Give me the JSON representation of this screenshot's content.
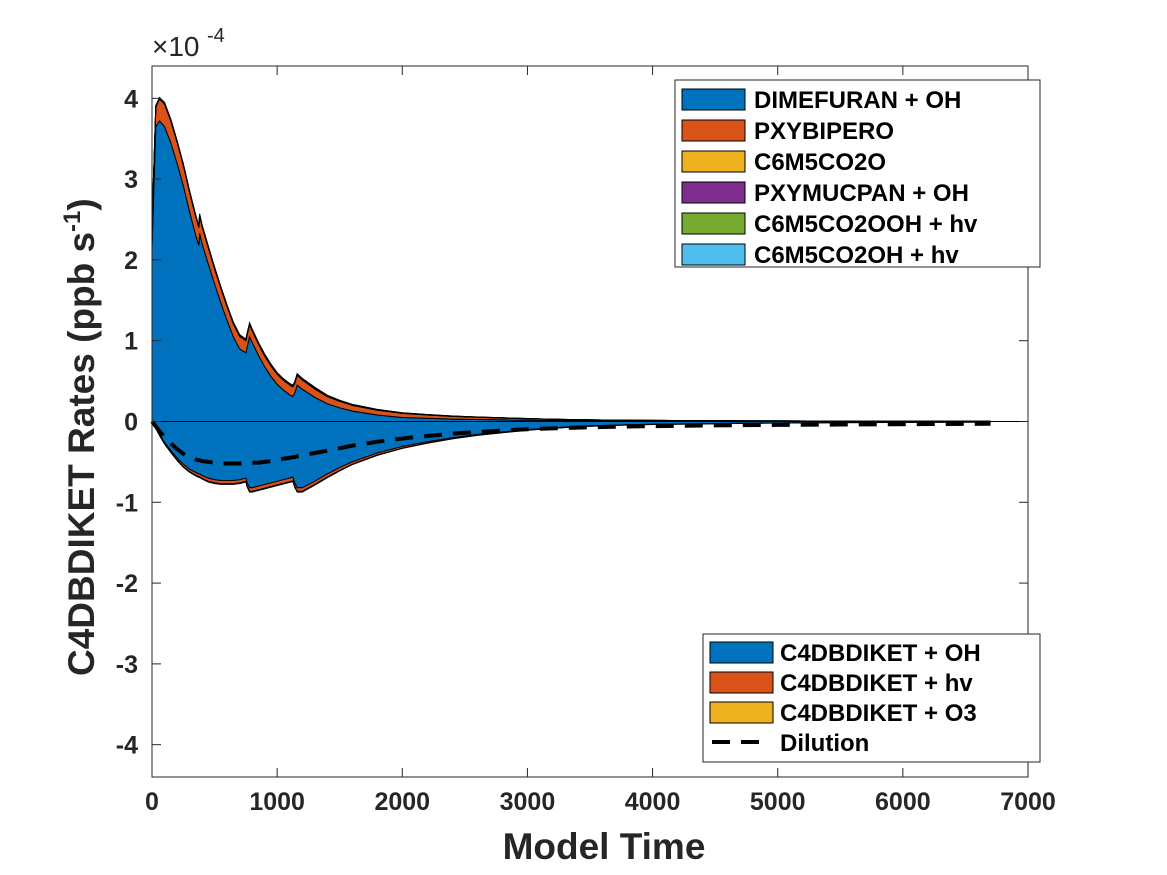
{
  "chart_data": {
    "type": "area",
    "xlabel": "Model Time",
    "ylabel": "C4DBDIKET Rates (ppb s",
    "ylabel_sup": "-1",
    "ylabel_close": ")",
    "axis_multiplier": {
      "base": "×10",
      "exponent": "-4"
    },
    "xlim": [
      0,
      7000
    ],
    "ylim": [
      -4.4,
      4.4
    ],
    "xticks": [
      0,
      1000,
      2000,
      3000,
      4000,
      5000,
      6000,
      7000
    ],
    "yticks": [
      4,
      3,
      2,
      1,
      0,
      -1,
      -2,
      -3,
      -4
    ],
    "grid": false,
    "legend_positive_placement": "top-right",
    "legend_negative_placement": "bottom-right",
    "x": [
      0,
      30,
      60,
      100,
      150,
      200,
      250,
      300,
      350,
      375,
      380,
      400,
      450,
      500,
      550,
      600,
      650,
      700,
      750,
      760,
      780,
      800,
      850,
      900,
      950,
      1000,
      1050,
      1100,
      1125,
      1140,
      1160,
      1200,
      1300,
      1400,
      1500,
      1600,
      1800,
      2000,
      2200,
      2400,
      2600,
      2800,
      3000,
      3200,
      3400,
      3600,
      3800,
      4000,
      4500,
      5000,
      5500,
      6000,
      6500,
      6700
    ],
    "positive_series": [
      {
        "name": "DIMEFURAN + OH",
        "color": "#0072BD",
        "values": [
          2.15,
          3.65,
          3.72,
          3.65,
          3.45,
          3.2,
          2.92,
          2.6,
          2.3,
          2.18,
          2.33,
          2.2,
          1.95,
          1.7,
          1.47,
          1.25,
          1.05,
          0.9,
          0.85,
          0.92,
          1.05,
          0.98,
          0.82,
          0.68,
          0.56,
          0.46,
          0.39,
          0.33,
          0.31,
          0.35,
          0.45,
          0.4,
          0.3,
          0.22,
          0.17,
          0.13,
          0.08,
          0.05,
          0.04,
          0.03,
          0.025,
          0.02,
          0.015,
          0.012,
          0.01,
          0.008,
          0.007,
          0.006,
          0.004,
          0.003,
          0.002,
          0.002,
          0.001,
          0.001
        ]
      },
      {
        "name": "PXYBIPERO",
        "color": "#D95319",
        "values": [
          0.25,
          0.24,
          0.27,
          0.28,
          0.27,
          0.26,
          0.25,
          0.24,
          0.23,
          0.22,
          0.22,
          0.21,
          0.2,
          0.19,
          0.18,
          0.17,
          0.16,
          0.155,
          0.15,
          0.15,
          0.15,
          0.145,
          0.14,
          0.135,
          0.13,
          0.125,
          0.12,
          0.12,
          0.12,
          0.12,
          0.12,
          0.115,
          0.105,
          0.09,
          0.08,
          0.07,
          0.06,
          0.05,
          0.04,
          0.033,
          0.027,
          0.022,
          0.018,
          0.015,
          0.012,
          0.01,
          0.008,
          0.007,
          0.005,
          0.004,
          0.003,
          0.002,
          0.002,
          0.001
        ]
      },
      {
        "name": "C6M5CO2O",
        "color": "#EDB120",
        "values": [
          0.01,
          0.01,
          0.01,
          0.01,
          0.01,
          0.01,
          0.01,
          0.01,
          0.01,
          0.01,
          0.01,
          0.01,
          0.01,
          0.01,
          0.01,
          0.01,
          0.01,
          0.01,
          0.01,
          0.01,
          0.01,
          0.01,
          0.01,
          0.01,
          0.01,
          0.01,
          0.01,
          0.01,
          0.01,
          0.01,
          0.01,
          0.01,
          0.01,
          0.008,
          0.007,
          0.006,
          0.005,
          0.004,
          0.003,
          0.003,
          0.002,
          0.002,
          0.002,
          0.001,
          0.001,
          0.001,
          0.001,
          0.001,
          0.001,
          0.0,
          0.0,
          0.0,
          0.0,
          0.0
        ]
      },
      {
        "name": "PXYMUCPAN + OH",
        "color": "#7E2F8E",
        "values": [
          0.0,
          0.005,
          0.005,
          0.005,
          0.005,
          0.005,
          0.005,
          0.005,
          0.005,
          0.005,
          0.005,
          0.005,
          0.005,
          0.005,
          0.005,
          0.005,
          0.005,
          0.005,
          0.005,
          0.005,
          0.005,
          0.005,
          0.005,
          0.005,
          0.005,
          0.005,
          0.005,
          0.005,
          0.005,
          0.005,
          0.005,
          0.005,
          0.004,
          0.004,
          0.003,
          0.003,
          0.002,
          0.002,
          0.002,
          0.001,
          0.001,
          0.001,
          0.001,
          0.001,
          0.0,
          0.0,
          0.0,
          0.0,
          0.0,
          0.0,
          0.0,
          0.0,
          0.0,
          0.0
        ]
      },
      {
        "name": "C6M5CO2OOH + hv",
        "color": "#77AC30",
        "values": [
          0.0,
          0.003,
          0.003,
          0.003,
          0.003,
          0.003,
          0.003,
          0.003,
          0.003,
          0.003,
          0.003,
          0.003,
          0.003,
          0.003,
          0.003,
          0.003,
          0.003,
          0.003,
          0.003,
          0.003,
          0.003,
          0.003,
          0.003,
          0.003,
          0.003,
          0.003,
          0.003,
          0.003,
          0.003,
          0.003,
          0.003,
          0.003,
          0.003,
          0.002,
          0.002,
          0.002,
          0.002,
          0.001,
          0.001,
          0.001,
          0.001,
          0.001,
          0.001,
          0.0,
          0.0,
          0.0,
          0.0,
          0.0,
          0.0,
          0.0,
          0.0,
          0.0,
          0.0,
          0.0
        ]
      },
      {
        "name": "C6M5CO2OH + hv",
        "color": "#4DBEEE",
        "values": [
          0.0,
          0.002,
          0.002,
          0.002,
          0.002,
          0.002,
          0.002,
          0.002,
          0.002,
          0.002,
          0.002,
          0.002,
          0.002,
          0.002,
          0.002,
          0.002,
          0.002,
          0.002,
          0.002,
          0.002,
          0.002,
          0.002,
          0.002,
          0.002,
          0.002,
          0.002,
          0.002,
          0.002,
          0.002,
          0.002,
          0.002,
          0.002,
          0.002,
          0.001,
          0.001,
          0.001,
          0.001,
          0.001,
          0.001,
          0.0,
          0.0,
          0.0,
          0.0,
          0.0,
          0.0,
          0.0,
          0.0,
          0.0,
          0.0,
          0.0,
          0.0,
          0.0,
          0.0,
          0.0
        ]
      }
    ],
    "negative_series": [
      {
        "name": "C4DBDIKET + OH",
        "color": "#0072BD",
        "values": [
          0.0,
          -0.08,
          -0.16,
          -0.26,
          -0.36,
          -0.45,
          -0.53,
          -0.59,
          -0.63,
          -0.65,
          -0.65,
          -0.67,
          -0.7,
          -0.72,
          -0.73,
          -0.73,
          -0.73,
          -0.72,
          -0.7,
          -0.76,
          -0.82,
          -0.82,
          -0.8,
          -0.78,
          -0.76,
          -0.74,
          -0.72,
          -0.7,
          -0.69,
          -0.76,
          -0.82,
          -0.82,
          -0.74,
          -0.65,
          -0.57,
          -0.5,
          -0.39,
          -0.31,
          -0.25,
          -0.2,
          -0.16,
          -0.13,
          -0.1,
          -0.08,
          -0.06,
          -0.05,
          -0.04,
          -0.035,
          -0.025,
          -0.018,
          -0.013,
          -0.01,
          -0.008,
          -0.007
        ]
      },
      {
        "name": "C4DBDIKET + hv",
        "color": "#D95319",
        "values": [
          0.0,
          -0.005,
          -0.01,
          -0.015,
          -0.02,
          -0.025,
          -0.03,
          -0.03,
          -0.035,
          -0.035,
          -0.035,
          -0.035,
          -0.04,
          -0.04,
          -0.04,
          -0.04,
          -0.04,
          -0.04,
          -0.04,
          -0.04,
          -0.045,
          -0.045,
          -0.045,
          -0.045,
          -0.045,
          -0.045,
          -0.045,
          -0.045,
          -0.045,
          -0.045,
          -0.045,
          -0.045,
          -0.04,
          -0.04,
          -0.035,
          -0.03,
          -0.025,
          -0.02,
          -0.016,
          -0.013,
          -0.01,
          -0.008,
          -0.007,
          -0.005,
          -0.004,
          -0.003,
          -0.003,
          -0.002,
          -0.002,
          -0.001,
          -0.001,
          -0.001,
          0.0,
          0.0
        ]
      },
      {
        "name": "C4DBDIKET + O3",
        "color": "#EDB120",
        "values": [
          0.0,
          -0.002,
          -0.003,
          -0.004,
          -0.005,
          -0.006,
          -0.007,
          -0.008,
          -0.008,
          -0.008,
          -0.008,
          -0.008,
          -0.009,
          -0.009,
          -0.009,
          -0.009,
          -0.009,
          -0.009,
          -0.009,
          -0.009,
          -0.009,
          -0.009,
          -0.009,
          -0.009,
          -0.009,
          -0.009,
          -0.009,
          -0.009,
          -0.009,
          -0.009,
          -0.009,
          -0.009,
          -0.008,
          -0.007,
          -0.006,
          -0.005,
          -0.004,
          -0.003,
          -0.003,
          -0.002,
          -0.002,
          -0.002,
          -0.001,
          -0.001,
          -0.001,
          -0.001,
          0.0,
          0.0,
          0.0,
          0.0,
          0.0,
          0.0,
          0.0,
          0.0
        ]
      }
    ],
    "dilution": {
      "name": "Dilution",
      "color": "#000000",
      "values": [
        0.0,
        -0.06,
        -0.12,
        -0.19,
        -0.27,
        -0.34,
        -0.4,
        -0.44,
        -0.47,
        -0.48,
        -0.48,
        -0.49,
        -0.5,
        -0.51,
        -0.52,
        -0.52,
        -0.52,
        -0.52,
        -0.52,
        -0.52,
        -0.52,
        -0.51,
        -0.51,
        -0.5,
        -0.49,
        -0.48,
        -0.46,
        -0.45,
        -0.44,
        -0.44,
        -0.43,
        -0.42,
        -0.39,
        -0.36,
        -0.33,
        -0.3,
        -0.25,
        -0.21,
        -0.18,
        -0.15,
        -0.13,
        -0.11,
        -0.095,
        -0.085,
        -0.075,
        -0.068,
        -0.062,
        -0.057,
        -0.048,
        -0.042,
        -0.037,
        -0.033,
        -0.03,
        -0.028
      ]
    }
  }
}
